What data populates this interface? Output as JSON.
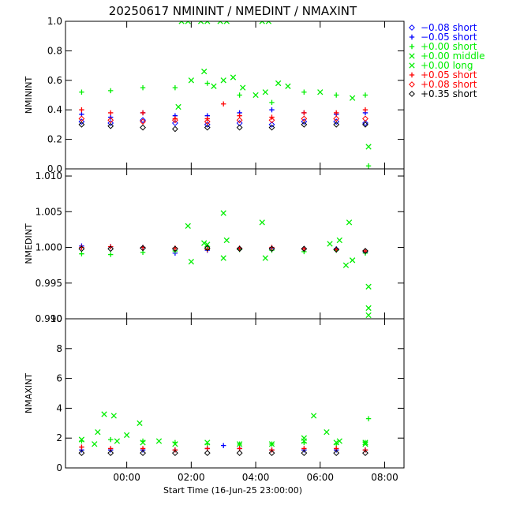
{
  "chart_data": {
    "type": "scatter",
    "title": "20250617 NMININT / NMEDINT / NMAXINT",
    "xlabel": "Start Time (16-Jun-25 23:00:00)",
    "x_unit": "hours since 16-Jun-25 23:00:00",
    "x_range": [
      -0.9,
      9.6
    ],
    "x_ticks": [
      1,
      3,
      5,
      7,
      9
    ],
    "x_tick_labels": [
      "00:00",
      "02:00",
      "04:00",
      "06:00",
      "08:00"
    ],
    "grid": false,
    "legend": {
      "placement": "right of top panel",
      "entries": [
        {
          "symbol": "diamond",
          "label": "−0.08 short",
          "color": "#0000ff"
        },
        {
          "symbol": "plus",
          "label": "−0.05 short",
          "color": "#0000ff"
        },
        {
          "symbol": "plus",
          "label": "+0.00 short",
          "color": "#00ee00"
        },
        {
          "symbol": "cross",
          "label": "+0.00 middle",
          "color": "#00ee00"
        },
        {
          "symbol": "cross",
          "label": "+0.00 long",
          "color": "#00ee00"
        },
        {
          "symbol": "plus",
          "label": "+0.05 short",
          "color": "#ff0000"
        },
        {
          "symbol": "diamond",
          "label": "+0.08 short",
          "color": "#ff0000"
        },
        {
          "symbol": "diamond",
          "label": "+0.35 short",
          "color": "#000000"
        }
      ]
    },
    "panels": [
      {
        "name": "nminint",
        "ylabel": "NMININT",
        "ylim": [
          0,
          1
        ],
        "yticks": [
          "0.0",
          "0.2",
          "0.4",
          "0.6",
          "0.8",
          "1.0"
        ],
        "series": [
          {
            "legend": 0,
            "x": [
              -0.4,
              0.5,
              1.5,
              2.5,
              3.5,
              4.5,
              5.5,
              6.5,
              7.5,
              8.4
            ],
            "y": [
              0.32,
              0.31,
              0.33,
              0.31,
              0.3,
              0.31,
              0.3,
              0.32,
              0.32,
              0.31
            ]
          },
          {
            "legend": 1,
            "x": [
              -0.4,
              0.5,
              1.5,
              2.5,
              3.5,
              4.5,
              5.5,
              6.5,
              7.5,
              8.4
            ],
            "y": [
              0.37,
              0.35,
              0.38,
              0.36,
              0.36,
              0.38,
              0.4,
              0.38,
              0.37,
              0.38
            ]
          },
          {
            "legend": 2,
            "x": [
              -0.4,
              0.5,
              1.5,
              2.5,
              3.5,
              4.5,
              5.5,
              6.5,
              7.5,
              8.4,
              8.5
            ],
            "y": [
              0.52,
              0.53,
              0.55,
              0.55,
              0.58,
              0.5,
              0.45,
              0.52,
              0.5,
              0.5,
              0.02
            ]
          },
          {
            "legend": 3,
            "x": [
              2.6,
              3.0,
              3.4,
              3.7,
              4.0,
              4.3,
              4.6,
              5.0,
              5.3,
              5.7,
              6.0,
              7.0,
              8.0,
              8.5
            ],
            "y": [
              0.42,
              0.6,
              0.66,
              0.56,
              0.6,
              0.62,
              0.55,
              0.5,
              0.52,
              0.58,
              0.56,
              0.52,
              0.48,
              0.15
            ]
          },
          {
            "legend": 4,
            "x": [
              2.7,
              2.9,
              3.3,
              3.5,
              3.9,
              4.1,
              5.2,
              5.4
            ],
            "y": [
              1.0,
              1.0,
              1.0,
              1.0,
              1.0,
              1.0,
              1.0,
              1.0
            ]
          },
          {
            "legend": 5,
            "x": [
              -0.4,
              0.5,
              1.5,
              2.5,
              3.5,
              4.0,
              4.5,
              5.5,
              6.5,
              7.5,
              8.4
            ],
            "y": [
              0.4,
              0.38,
              0.38,
              0.34,
              0.34,
              0.44,
              0.36,
              0.35,
              0.38,
              0.38,
              0.4
            ]
          },
          {
            "legend": 6,
            "x": [
              -0.4,
              0.5,
              1.5,
              2.5,
              3.5,
              4.5,
              5.5,
              6.5,
              7.5,
              8.4
            ],
            "y": [
              0.34,
              0.33,
              0.32,
              0.33,
              0.32,
              0.33,
              0.33,
              0.34,
              0.34,
              0.34
            ]
          },
          {
            "legend": 7,
            "x": [
              -0.4,
              0.5,
              1.5,
              2.5,
              3.5,
              4.5,
              5.5,
              6.5,
              7.5,
              8.4
            ],
            "y": [
              0.3,
              0.29,
              0.28,
              0.27,
              0.28,
              0.28,
              0.28,
              0.3,
              0.3,
              0.3
            ]
          }
        ]
      },
      {
        "name": "nmedint",
        "ylabel": "NMEDINT",
        "ylim": [
          0.99,
          1.011
        ],
        "yticks": [
          "0.990",
          "0.995",
          "1.000",
          "1.005",
          "1.010"
        ],
        "series": [
          {
            "legend": 1,
            "x": [
              -0.4,
              0.5,
              1.5,
              2.5,
              3.5,
              4.5,
              5.5,
              6.5,
              7.5,
              8.4
            ],
            "y": [
              1.0002,
              1.0001,
              1.0,
              0.9992,
              0.9996,
              0.9998,
              0.9999,
              0.9998,
              0.9998,
              0.9993
            ]
          },
          {
            "legend": 2,
            "x": [
              -0.4,
              0.5,
              1.5,
              2.5,
              3.5,
              4.5,
              5.5,
              6.5,
              7.5,
              8.4
            ],
            "y": [
              0.9991,
              0.999,
              0.9993,
              0.9995,
              0.9998,
              0.9997,
              0.9996,
              0.9994,
              0.9996,
              0.9992
            ]
          },
          {
            "legend": 3,
            "x": [
              2.9,
              3.0,
              3.4,
              3.5,
              4.0,
              4.0,
              4.1,
              5.2,
              5.3,
              7.3,
              7.6,
              7.9,
              8.5
            ],
            "y": [
              1.003,
              0.998,
              1.0006,
              1.0004,
              1.0048,
              0.9985,
              1.001,
              1.0035,
              0.9985,
              1.0005,
              1.001,
              1.0035,
              0.9905
            ]
          },
          {
            "legend": 4,
            "x": [
              7.8,
              8.0,
              8.5,
              8.5
            ],
            "y": [
              0.9975,
              0.9982,
              0.9945,
              0.9915
            ]
          },
          {
            "legend": 5,
            "x": [
              -0.4,
              0.5,
              1.5,
              2.5,
              3.5,
              4.5,
              5.5,
              6.5,
              7.5,
              8.4
            ],
            "y": [
              1.0,
              1.0001,
              1.0,
              0.9999,
              0.9997,
              0.9999,
              1.0,
              0.9998,
              0.9997,
              0.9995
            ]
          },
          {
            "legend": 7,
            "x": [
              -0.4,
              0.5,
              1.5,
              2.5,
              3.5,
              4.5,
              5.5,
              6.5,
              7.5,
              8.4
            ],
            "y": [
              0.9998,
              0.9998,
              0.9999,
              0.9998,
              0.9999,
              0.9998,
              0.9998,
              0.9998,
              0.9997,
              0.9995
            ]
          }
        ]
      },
      {
        "name": "nmaxint",
        "ylabel": "NMAXINT",
        "ylim": [
          0,
          10
        ],
        "yticks": [
          "0",
          "2",
          "4",
          "6",
          "8",
          "10"
        ],
        "series": [
          {
            "legend": 1,
            "x": [
              -0.4,
              0.5,
              1.5,
              2.5,
              3.5,
              4.0,
              4.5,
              5.5,
              6.5,
              7.5,
              8.4
            ],
            "y": [
              1.2,
              1.2,
              1.2,
              1.2,
              1.3,
              1.5,
              1.3,
              1.2,
              1.2,
              1.2,
              1.2
            ]
          },
          {
            "legend": 2,
            "x": [
              -0.4,
              0.5,
              1.5,
              2.5,
              3.5,
              4.5,
              5.5,
              6.5,
              7.5,
              8.4,
              8.5
            ],
            "y": [
              1.8,
              1.9,
              1.8,
              1.7,
              1.6,
              1.6,
              1.6,
              1.7,
              1.6,
              1.7,
              3.3
            ]
          },
          {
            "legend": 3,
            "x": [
              -0.4,
              0.1,
              0.3,
              0.6,
              1.0,
              1.4,
              2.0,
              6.5,
              6.8,
              7.2,
              7.6,
              8.4
            ],
            "y": [
              1.9,
              2.4,
              3.6,
              3.5,
              2.2,
              3.0,
              1.8,
              2.0,
              3.5,
              2.4,
              1.8,
              1.7
            ]
          },
          {
            "legend": 4,
            "x": [
              0.0,
              0.7,
              1.5,
              2.5,
              3.5,
              4.5,
              5.5,
              6.5,
              7.5,
              8.4
            ],
            "y": [
              1.6,
              1.8,
              1.7,
              1.6,
              1.7,
              1.6,
              1.6,
              1.8,
              1.7,
              1.6
            ]
          },
          {
            "legend": 5,
            "x": [
              -0.4,
              0.5,
              1.5,
              2.5,
              3.5,
              4.5,
              5.5,
              6.5,
              7.5,
              8.4
            ],
            "y": [
              1.4,
              1.3,
              1.3,
              1.2,
              1.3,
              1.3,
              1.2,
              1.3,
              1.3,
              1.2
            ]
          },
          {
            "legend": 7,
            "x": [
              -0.4,
              0.5,
              1.5,
              2.5,
              3.5,
              4.5,
              5.5,
              6.5,
              7.5,
              8.4
            ],
            "y": [
              1.0,
              1.0,
              1.0,
              1.0,
              1.0,
              1.0,
              1.0,
              1.0,
              1.0,
              1.0
            ]
          }
        ]
      }
    ]
  }
}
